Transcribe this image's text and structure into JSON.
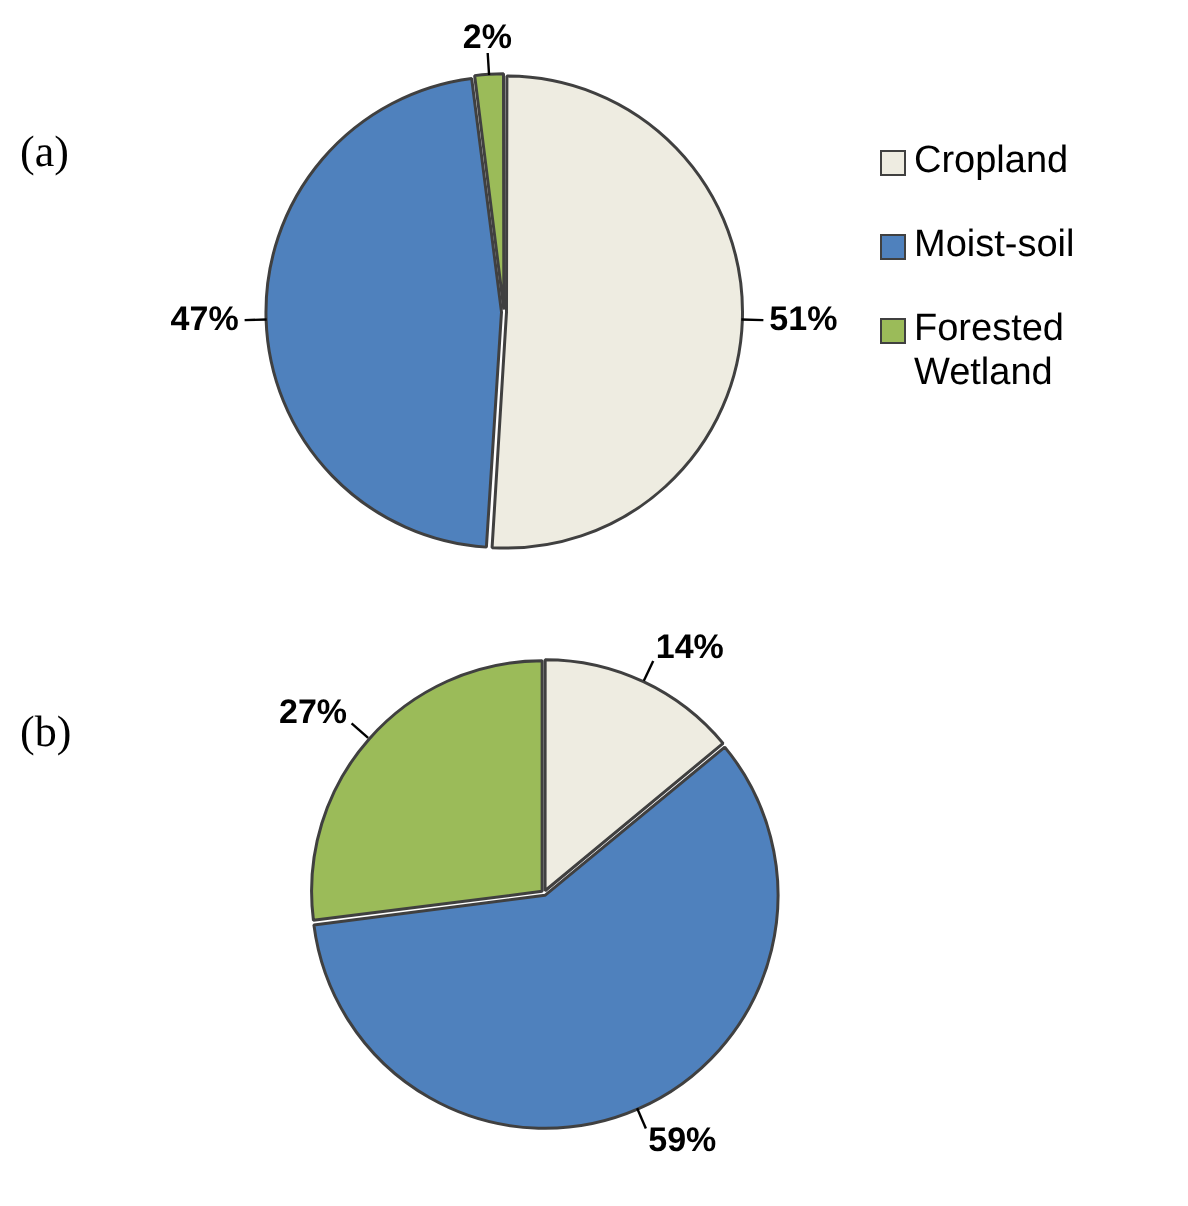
{
  "chart_data": [
    {
      "type": "pie",
      "title": "(a)",
      "categories": [
        "Cropland",
        "Moist-soil",
        "Forested Wetland"
      ],
      "values": [
        51,
        47,
        2
      ],
      "colors": [
        "#eeece1",
        "#4f81bd",
        "#9bbb59"
      ],
      "value_labels": [
        "51%",
        "47%",
        "2%"
      ],
      "legend": "right"
    },
    {
      "type": "pie",
      "title": "(b)",
      "categories": [
        null,
        null,
        null
      ],
      "values": [
        14,
        59,
        27
      ],
      "colors": [
        "#eeece1",
        "#4f81bd",
        "#9bbb59"
      ],
      "value_labels": [
        "14%",
        "59%",
        "27%"
      ],
      "legend": false
    }
  ]
}
